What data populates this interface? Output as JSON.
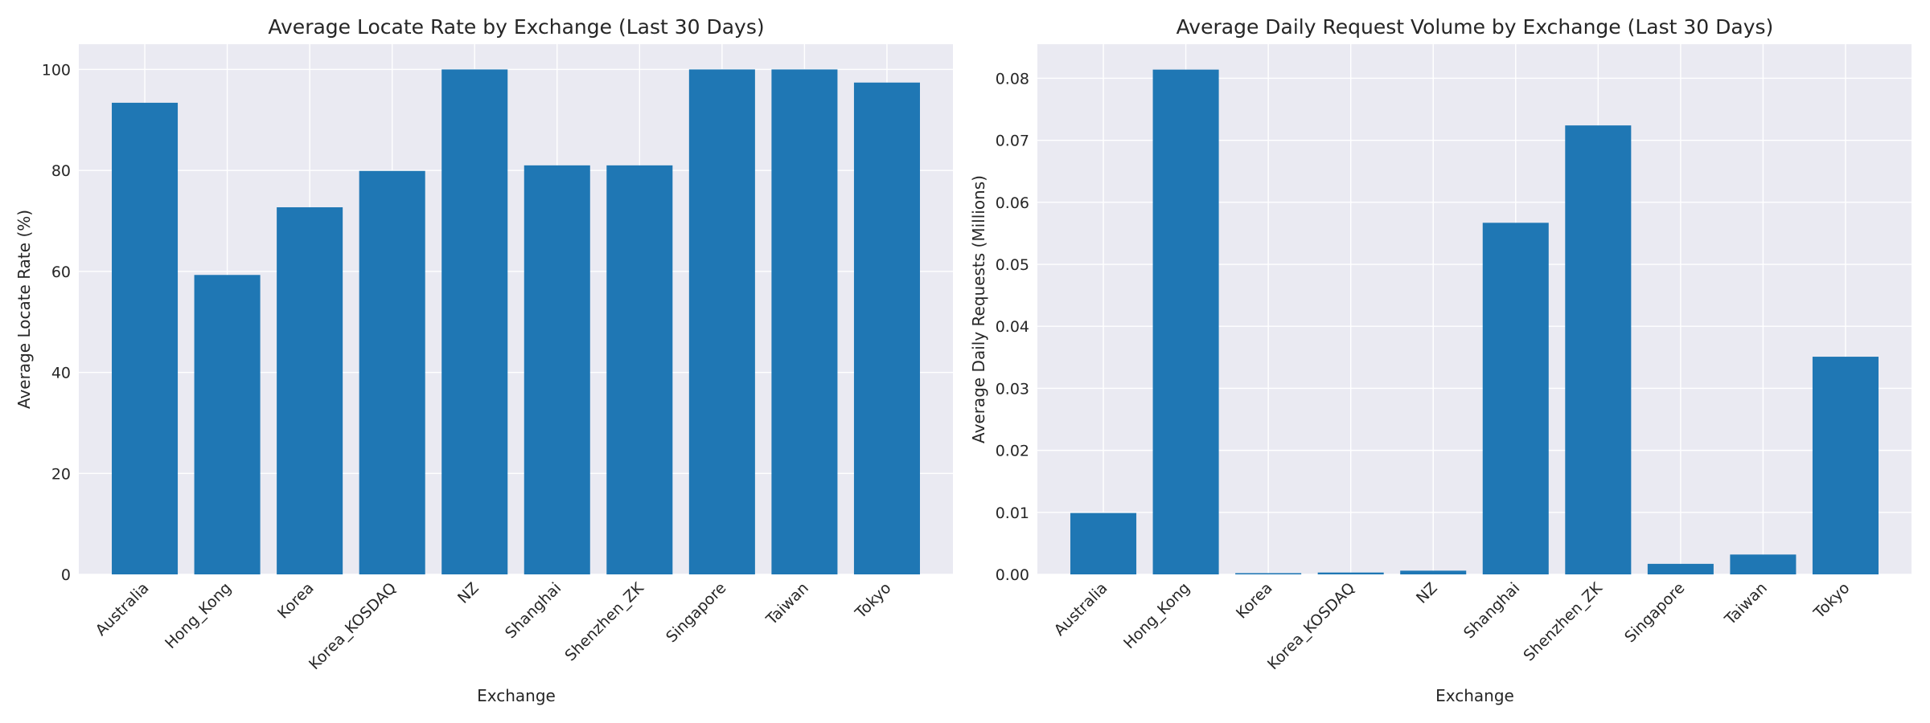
{
  "chart_data": [
    {
      "type": "bar",
      "title": "Average Locate Rate by Exchange (Last 30 Days)",
      "xlabel": "Exchange",
      "ylabel": "Average Locate Rate (%)",
      "categories": [
        "Australia",
        "Hong_Kong",
        "Korea",
        "Korea_KOSDAQ",
        "NZ",
        "Shanghai",
        "Shenzhen_ZK",
        "Singapore",
        "Taiwan",
        "Tokyo"
      ],
      "values": [
        93.4,
        59.3,
        72.7,
        79.9,
        100.0,
        81.0,
        81.0,
        100.0,
        100.0,
        97.4
      ],
      "ylim": [
        0,
        105
      ],
      "yticks": [
        "0",
        "20",
        "40",
        "60",
        "80",
        "100"
      ],
      "grid": true,
      "color": "#1f77b4"
    },
    {
      "type": "bar",
      "title": "Average Daily Request Volume by Exchange (Last 30 Days)",
      "xlabel": "Exchange",
      "ylabel": "Average Daily Requests (Millions)",
      "categories": [
        "Australia",
        "Hong_Kong",
        "Korea",
        "Korea_KOSDAQ",
        "NZ",
        "Shanghai",
        "Shenzhen_ZK",
        "Singapore",
        "Taiwan",
        "Tokyo"
      ],
      "values": [
        0.0099,
        0.0814,
        0.0002,
        0.0003,
        0.0006,
        0.0567,
        0.0724,
        0.0017,
        0.0032,
        0.0351
      ],
      "ylim": [
        0,
        0.0855
      ],
      "yticks": [
        "0.00",
        "0.01",
        "0.02",
        "0.03",
        "0.04",
        "0.05",
        "0.06",
        "0.07",
        "0.08"
      ],
      "grid": true,
      "color": "#1f77b4"
    }
  ]
}
